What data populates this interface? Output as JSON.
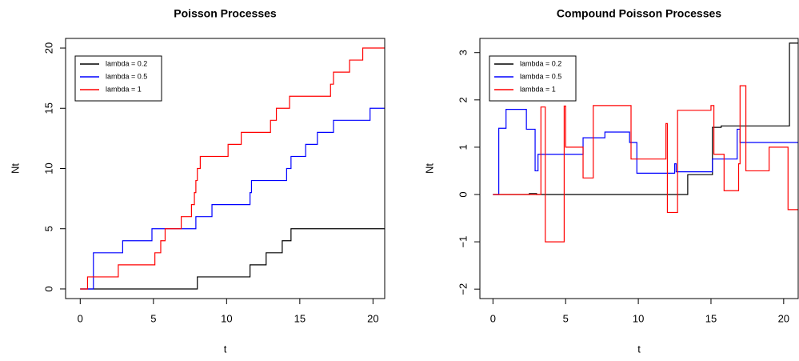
{
  "chart_data": [
    {
      "type": "line",
      "step": true,
      "title": "Poisson Processes",
      "x_label": "t",
      "y_label": "Nt",
      "xlim": [
        -1,
        20.8
      ],
      "ylim": [
        -0.8,
        20.8
      ],
      "xticks": [
        0,
        5,
        10,
        15,
        20
      ],
      "yticks": [
        0,
        5,
        10,
        15,
        20
      ],
      "legend": "top-left",
      "series": [
        {
          "name": "lambda = 0.2",
          "color": "#000000",
          "x": [
            0,
            8,
            11.6,
            12.7,
            13.8,
            14.4
          ],
          "values": [
            0,
            1,
            2,
            3,
            4,
            5
          ]
        },
        {
          "name": "lambda = 0.5",
          "color": "#0000ff",
          "x": [
            0,
            0.9,
            2.9,
            4.9,
            7.9,
            9.0,
            11.6,
            11.7,
            14.1,
            14.4,
            15.4,
            16.2,
            17.3,
            19.8
          ],
          "values": [
            0,
            3,
            4,
            5,
            6,
            7,
            8,
            9,
            10,
            11,
            12,
            13,
            14,
            15
          ]
        },
        {
          "name": "lambda = 1",
          "color": "#ff0000",
          "x": [
            0,
            0.5,
            2.6,
            5.1,
            5.5,
            5.8,
            6.9,
            7.6,
            7.8,
            7.9,
            8.0,
            8.2,
            10.1,
            11.0,
            13.0,
            13.4,
            14.3,
            17.1,
            17.3,
            18.4,
            19.3
          ],
          "values": [
            0,
            1,
            2,
            3,
            4,
            5,
            6,
            7,
            8,
            9,
            10,
            11,
            12,
            13,
            14,
            15,
            16,
            17,
            18,
            19,
            20
          ]
        }
      ]
    },
    {
      "type": "line",
      "step": true,
      "title": "Compound Poisson Processes",
      "x_label": "t",
      "y_label": "Nt",
      "xlim": [
        -0.9,
        21
      ],
      "ylim": [
        -2.2,
        3.3
      ],
      "xticks": [
        0,
        5,
        10,
        15,
        20
      ],
      "yticks": [
        {
          "value": -2,
          "label": "−2"
        },
        {
          "value": -1,
          "label": "−1"
        },
        0,
        1,
        2,
        3
      ],
      "legend": "top-left",
      "series": [
        {
          "name": "lambda = 0.2",
          "color": "#000000",
          "x": [
            0,
            2.5,
            3.0,
            13.4,
            15.1,
            15.7,
            20.4
          ],
          "values": [
            0,
            0.02,
            0,
            0.42,
            1.42,
            1.45,
            3.2
          ]
        },
        {
          "name": "lambda = 0.5",
          "color": "#0000ff",
          "x": [
            0,
            0.4,
            0.9,
            2.3,
            2.9,
            3.1,
            6.2,
            7.7,
            9.4,
            9.9,
            12.5,
            12.6,
            15.1,
            16.8,
            17.0
          ],
          "values": [
            0,
            1.4,
            1.8,
            1.38,
            0.5,
            0.85,
            1.2,
            1.32,
            1.1,
            0.45,
            0.65,
            0.48,
            0.75,
            1.38,
            1.1
          ]
        },
        {
          "name": "lambda = 1",
          "color": "#ff0000",
          "x": [
            0,
            3.3,
            3.6,
            4.9,
            5.0,
            6.2,
            6.9,
            9.5,
            11.9,
            12.0,
            12.7,
            15.0,
            15.2,
            15.9,
            16.9,
            17.0,
            17.4,
            19.0,
            20.3
          ],
          "values": [
            0,
            1.85,
            -1.0,
            1.87,
            1.0,
            0.35,
            1.88,
            0.75,
            1.5,
            -0.38,
            1.78,
            1.88,
            0.85,
            0.08,
            0.65,
            2.3,
            0.5,
            1.0,
            -0.32
          ]
        }
      ]
    }
  ]
}
